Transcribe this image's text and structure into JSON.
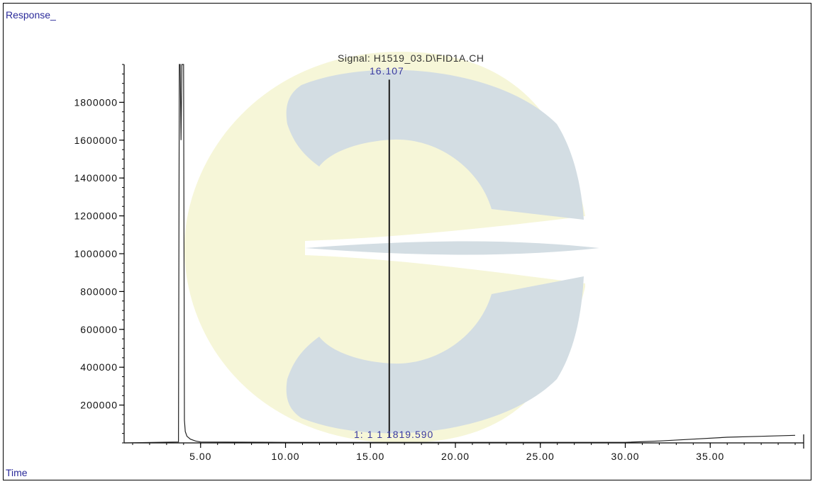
{
  "ylabel": "Response_",
  "xlabel": "Time",
  "signal_title": "Signal: H1519_03.D\\FID1A.CH",
  "peak_label": "16.107",
  "bottom_label": "1:  1 1  1819.590",
  "colors": {
    "axis": "#000000",
    "trace": "#222222",
    "peak_line": "#1a1a1a",
    "label_blue": "#2a2a9a",
    "watermark_yellow": "#f6f6d8",
    "watermark_blue": "#d3dde3"
  },
  "chart_data": {
    "type": "line",
    "title": "Signal: H1519_03.D\\FID1A.CH",
    "xlabel": "Time",
    "ylabel": "Response_",
    "xlim": [
      0.5,
      40.5
    ],
    "ylim": [
      0,
      2000000
    ],
    "x_ticks": [
      "5.00",
      "10.00",
      "15.00",
      "20.00",
      "25.00",
      "30.00",
      "35.00"
    ],
    "y_ticks": [
      "200000",
      "400000",
      "600000",
      "800000",
      "1000000",
      "1200000",
      "1400000",
      "1600000",
      "1800000"
    ],
    "grid": false,
    "series": [
      {
        "x": [
          0.5,
          3.7,
          3.75,
          3.8,
          3.85,
          3.9,
          4.0,
          4.05,
          4.1,
          4.2,
          4.4,
          4.7,
          5.0,
          10.0,
          20.0,
          30.0,
          32.0,
          34.0,
          36.0,
          38.0,
          40.0
        ],
        "y": [
          0,
          5000,
          2000000,
          2000000,
          1600000,
          2000000,
          2000000,
          120000,
          60000,
          35000,
          20000,
          10000,
          5000,
          3000,
          3000,
          3000,
          10000,
          20000,
          30000,
          35000,
          40000
        ]
      }
    ],
    "peaks": [
      {
        "time": 16.107,
        "response": 1920000,
        "label": "16.107"
      }
    ]
  }
}
